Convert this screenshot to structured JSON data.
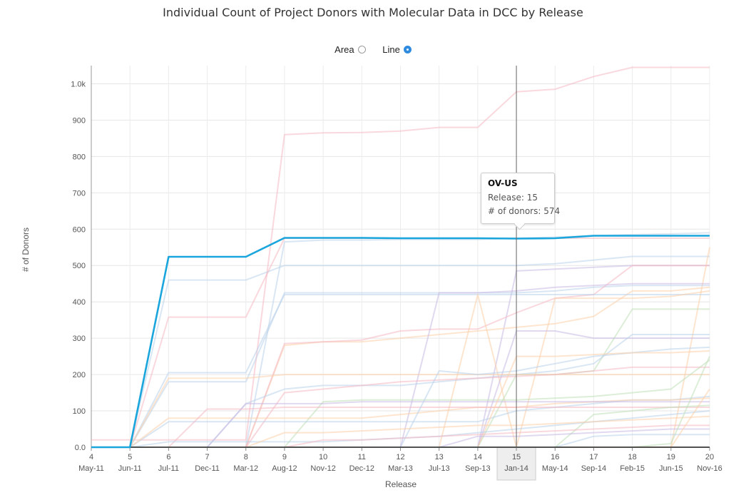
{
  "title": "Individual Count of Project Donors with Molecular Data in DCC by Release",
  "view_toggle": {
    "area_label": "Area",
    "line_label": "Line",
    "selected": "Line"
  },
  "tooltip": {
    "title": "OV-US",
    "release_label": "Release: 15",
    "donors_label": "# of donors: 574"
  },
  "chart_data": {
    "type": "line",
    "title": "Individual Count of Project Donors with Molecular Data in DCC by Release",
    "xlabel": "Release",
    "ylabel": "# of Donors",
    "categories": [
      "4",
      "5",
      "6",
      "7",
      "8",
      "9",
      "10",
      "11",
      "12",
      "13",
      "14",
      "15",
      "16",
      "17",
      "18",
      "19",
      "20"
    ],
    "category_dates": [
      "May-11",
      "Jun-11",
      "Jul-11",
      "Dec-11",
      "Mar-12",
      "Aug-12",
      "Nov-12",
      "Dec-12",
      "Mar-13",
      "Jul-13",
      "Sep-13",
      "Jan-14",
      "May-14",
      "Sep-14",
      "Feb-15",
      "Jun-15",
      "Nov-16"
    ],
    "y_ticks": [
      "0.0",
      "100",
      "200",
      "300",
      "400",
      "500",
      "600",
      "700",
      "800",
      "900",
      "1.0k"
    ],
    "ylim": [
      0,
      1050
    ],
    "grid": true,
    "highlight_category": "15",
    "highlight_series": "OV-US",
    "series": [
      {
        "name": "OV-US",
        "color": "#1aa6dc",
        "values": [
          0,
          0,
          524,
          524,
          524,
          576,
          576,
          576,
          575,
          575,
          575,
          574,
          575,
          582,
          582,
          582,
          582
        ]
      },
      {
        "color": "#f4b8c2",
        "values": [
          20,
          20,
          20,
          20,
          20,
          860,
          865,
          866,
          870,
          880,
          880,
          978,
          985,
          1020,
          1045,
          1045,
          1045
        ]
      },
      {
        "color": "#b9d2ea",
        "values": [
          0,
          0,
          0,
          0,
          0,
          565,
          570,
          570,
          572,
          572,
          572,
          575,
          578,
          582,
          585,
          587,
          590
        ]
      },
      {
        "color": "#b9d2ea",
        "values": [
          0,
          0,
          460,
          460,
          460,
          500,
          500,
          500,
          500,
          500,
          500,
          500,
          505,
          515,
          525,
          525,
          525
        ]
      },
      {
        "color": "#f4b8c2",
        "values": [
          0,
          0,
          358,
          358,
          358,
          575,
          575,
          575,
          575,
          575,
          575,
          575,
          575,
          575,
          575,
          575,
          575
        ]
      },
      {
        "color": "#c9b9e3",
        "values": [
          0,
          0,
          0,
          0,
          0,
          0,
          0,
          0,
          0,
          0,
          0,
          485,
          490,
          495,
          500,
          500,
          500
        ]
      },
      {
        "color": "#fbd0aa",
        "values": [
          0,
          0,
          0,
          0,
          0,
          0,
          0,
          0,
          0,
          0,
          0,
          0,
          0,
          0,
          0,
          0,
          550
        ]
      },
      {
        "color": "#b9d2ea",
        "values": [
          0,
          0,
          180,
          180,
          180,
          425,
          425,
          425,
          425,
          425,
          425,
          425,
          430,
          440,
          445,
          445,
          445
        ]
      },
      {
        "color": "#fbd0aa",
        "values": [
          0,
          0,
          0,
          0,
          0,
          280,
          290,
          290,
          300,
          310,
          320,
          330,
          340,
          360,
          430,
          430,
          440
        ]
      },
      {
        "color": "#f4b8c2",
        "values": [
          0,
          0,
          0,
          0,
          0,
          285,
          290,
          295,
          320,
          325,
          325,
          370,
          410,
          420,
          500,
          500,
          500
        ]
      },
      {
        "color": "#b9d2ea",
        "values": [
          0,
          0,
          205,
          205,
          205,
          420,
          420,
          420,
          420,
          420,
          420,
          420,
          420,
          420,
          420,
          420,
          420
        ]
      },
      {
        "color": "#c9b9e3",
        "values": [
          0,
          0,
          0,
          0,
          0,
          0,
          0,
          0,
          0,
          425,
          425,
          430,
          440,
          445,
          450,
          450,
          450
        ]
      },
      {
        "color": "#fbd0aa",
        "values": [
          0,
          0,
          0,
          0,
          0,
          0,
          0,
          0,
          0,
          0,
          420,
          0,
          410,
          410,
          410,
          415,
          430
        ]
      },
      {
        "color": "#bfe0b8",
        "values": [
          0,
          0,
          0,
          0,
          0,
          0,
          0,
          0,
          0,
          0,
          0,
          200,
          200,
          210,
          380,
          380,
          380
        ]
      },
      {
        "color": "#c9b9e3",
        "values": [
          0,
          0,
          0,
          0,
          0,
          0,
          0,
          0,
          0,
          0,
          0,
          320,
          320,
          300,
          300,
          300,
          300
        ]
      },
      {
        "color": "#b9d2ea",
        "values": [
          0,
          0,
          0,
          0,
          120,
          160,
          170,
          170,
          170,
          180,
          190,
          200,
          210,
          230,
          310,
          310,
          310
        ]
      },
      {
        "color": "#fbd0aa",
        "values": [
          0,
          0,
          190,
          190,
          190,
          200,
          200,
          200,
          200,
          200,
          200,
          200,
          200,
          200,
          200,
          200,
          200
        ]
      },
      {
        "color": "#f4b8c2",
        "values": [
          0,
          0,
          0,
          0,
          0,
          150,
          160,
          170,
          180,
          185,
          190,
          195,
          200,
          210,
          220,
          220,
          220
        ]
      },
      {
        "color": "#bfe0b8",
        "values": [
          0,
          0,
          0,
          0,
          0,
          0,
          125,
          130,
          130,
          130,
          130,
          130,
          135,
          140,
          150,
          160,
          240
        ]
      },
      {
        "color": "#b9d2ea",
        "values": [
          0,
          0,
          70,
          70,
          70,
          70,
          70,
          70,
          70,
          70,
          70,
          100,
          110,
          120,
          130,
          130,
          140
        ]
      },
      {
        "color": "#fbd0aa",
        "values": [
          0,
          0,
          80,
          80,
          80,
          80,
          80,
          80,
          90,
          100,
          110,
          110,
          120,
          125,
          130,
          130,
          135
        ]
      },
      {
        "color": "#c9b9e3",
        "values": [
          0,
          0,
          0,
          0,
          120,
          120,
          120,
          125,
          125,
          125,
          125,
          125,
          125,
          125,
          125,
          125,
          125
        ]
      },
      {
        "color": "#f4b8c2",
        "values": [
          0,
          0,
          0,
          105,
          105,
          110,
          110,
          110,
          110,
          110,
          110,
          110,
          110,
          110,
          110,
          110,
          110
        ]
      },
      {
        "color": "#b9d2ea",
        "values": [
          0,
          0,
          0,
          0,
          0,
          0,
          0,
          0,
          0,
          210,
          200,
          210,
          230,
          250,
          260,
          270,
          275
        ]
      },
      {
        "color": "#fbd0aa",
        "values": [
          0,
          0,
          0,
          0,
          0,
          0,
          0,
          0,
          0,
          0,
          0,
          250,
          250,
          255,
          260,
          260,
          265
        ]
      },
      {
        "color": "#bfe0b8",
        "values": [
          0,
          0,
          0,
          0,
          0,
          0,
          0,
          0,
          0,
          0,
          0,
          0,
          0,
          90,
          100,
          110,
          115
        ]
      },
      {
        "color": "#b9d2ea",
        "values": [
          0,
          0,
          15,
          15,
          15,
          15,
          15,
          20,
          25,
          30,
          40,
          50,
          60,
          70,
          80,
          90,
          100
        ]
      },
      {
        "color": "#fbd0aa",
        "values": [
          0,
          0,
          0,
          0,
          0,
          40,
          40,
          45,
          50,
          55,
          60,
          60,
          65,
          70,
          75,
          80,
          85
        ]
      },
      {
        "color": "#f4b8c2",
        "values": [
          0,
          0,
          0,
          0,
          0,
          0,
          20,
          20,
          25,
          30,
          35,
          40,
          45,
          50,
          55,
          60,
          60
        ]
      },
      {
        "color": "#c9b9e3",
        "values": [
          0,
          0,
          0,
          0,
          0,
          0,
          0,
          0,
          0,
          0,
          30,
          30,
          35,
          40,
          45,
          50,
          50
        ]
      },
      {
        "color": "#bfe0b8",
        "values": [
          0,
          0,
          0,
          0,
          0,
          0,
          0,
          0,
          0,
          0,
          0,
          0,
          0,
          0,
          0,
          10,
          250
        ]
      },
      {
        "color": "#fbd0aa",
        "values": [
          0,
          0,
          0,
          0,
          0,
          0,
          0,
          0,
          0,
          0,
          0,
          0,
          0,
          0,
          0,
          0,
          160
        ]
      },
      {
        "color": "#b9d2ea",
        "values": [
          0,
          0,
          0,
          0,
          0,
          0,
          0,
          0,
          0,
          0,
          0,
          0,
          0,
          30,
          35,
          35,
          35
        ]
      },
      {
        "color": "#444444",
        "values": [
          0,
          0,
          0,
          0,
          0,
          0,
          0,
          0,
          0,
          0,
          0,
          0,
          0,
          0,
          0,
          0,
          0
        ]
      }
    ]
  }
}
